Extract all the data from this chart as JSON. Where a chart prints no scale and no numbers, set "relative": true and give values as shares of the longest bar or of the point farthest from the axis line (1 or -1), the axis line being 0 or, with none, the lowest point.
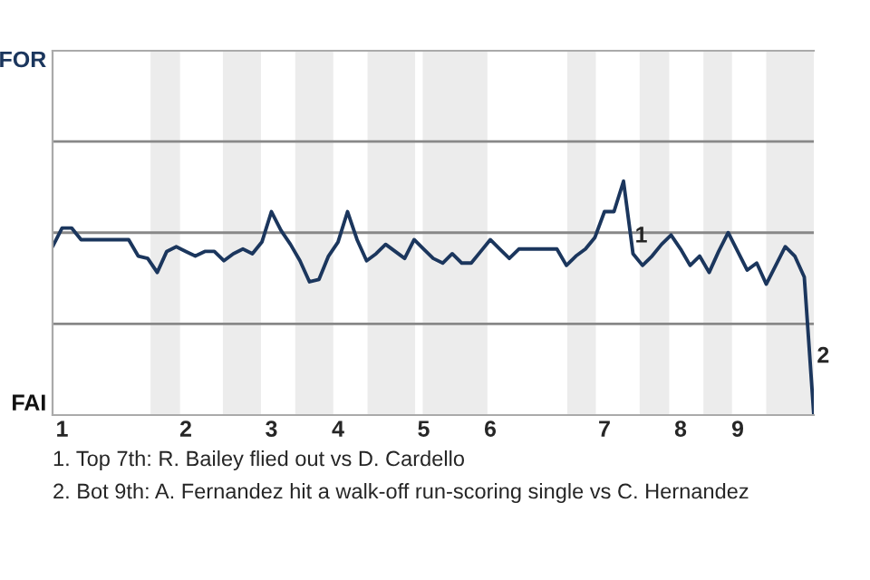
{
  "chart_data": {
    "type": "line",
    "relative": true,
    "categories": [
      null,
      "1",
      null,
      null,
      null,
      null,
      null,
      null,
      null,
      null,
      null,
      null,
      null,
      null,
      "2",
      null,
      null,
      null,
      null,
      null,
      null,
      null,
      null,
      "3",
      null,
      null,
      null,
      null,
      null,
      null,
      "4",
      null,
      null,
      null,
      null,
      null,
      null,
      null,
      null,
      "5",
      null,
      null,
      null,
      null,
      null,
      null,
      "6",
      null,
      null,
      null,
      null,
      null,
      null,
      null,
      null,
      null,
      null,
      null,
      "7",
      null,
      null,
      null,
      null,
      null,
      null,
      null,
      "8",
      null,
      null,
      null,
      null,
      null,
      "9",
      null,
      null,
      null,
      null,
      null,
      null,
      null,
      null
    ],
    "series": [
      {
        "color": "#1b365d",
        "values": [
          0.72,
          0.8,
          0.8,
          0.75,
          0.75,
          0.75,
          0.75,
          0.75,
          0.75,
          0.68,
          0.67,
          0.61,
          0.7,
          0.72,
          0.7,
          0.68,
          0.7,
          0.7,
          0.66,
          0.69,
          0.71,
          0.69,
          0.74,
          0.87,
          0.79,
          0.73,
          0.66,
          0.57,
          0.58,
          0.68,
          0.74,
          0.87,
          0.75,
          0.66,
          0.69,
          0.73,
          0.7,
          0.67,
          0.75,
          0.71,
          0.67,
          0.65,
          0.69,
          0.65,
          0.65,
          0.7,
          0.75,
          0.71,
          0.67,
          0.71,
          0.71,
          0.71,
          0.71,
          0.71,
          0.64,
          0.68,
          0.71,
          0.76,
          0.87,
          0.87,
          1,
          0.69,
          0.64,
          0.68,
          0.73,
          0.77,
          0.71,
          0.64,
          0.68,
          0.61,
          0.7,
          0.78,
          0.7,
          0.62,
          0.65,
          0.56,
          0.64,
          0.72,
          0.68,
          0.59,
          0
        ]
      }
    ],
    "ref_lines": [
      {
        "axis": "y",
        "value": 0.39,
        "color": "#888888"
      },
      {
        "axis": "y",
        "value": 0.78,
        "color": "#888888"
      },
      {
        "axis": "y",
        "value": 1.17,
        "color": "#888888"
      }
    ],
    "annotations": [
      "FOR",
      "FAI",
      "1",
      "2",
      "1. Top 7th: R. Bailey flied out vs D. Cardello",
      "2. Bot 9th: A. Fernandez hit a walk-off run-scoring single vs C. Hernandez"
    ]
  }
}
